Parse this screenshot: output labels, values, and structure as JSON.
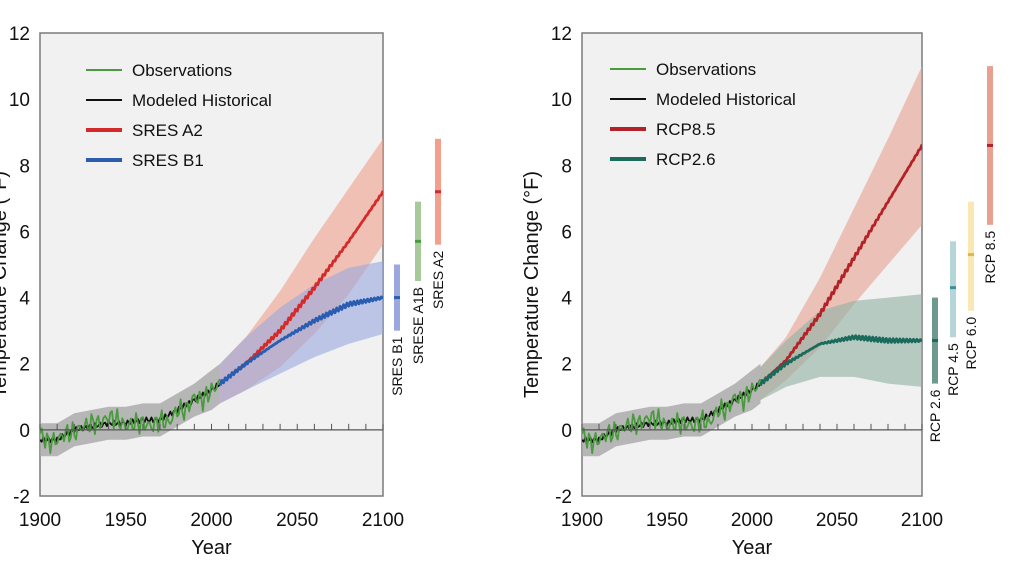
{
  "chart_data": [
    {
      "type": "line",
      "id": "sres",
      "xlabel": "Year",
      "ylabel": "Temperature Change (°F)",
      "xlim": [
        1900,
        2100
      ],
      "ylim": [
        -2,
        12
      ],
      "xticks": [
        "1900",
        "1950",
        "2000",
        "2050",
        "2100"
      ],
      "yticks": [
        "-2",
        "0",
        "2",
        "4",
        "6",
        "8",
        "10",
        "12"
      ],
      "legend_position": "top-left",
      "legend": [
        {
          "label": "Observations",
          "color": "#4a9a3e"
        },
        {
          "label": "Modeled Historical",
          "color": "#111111"
        },
        {
          "label": "SRES A2",
          "color": "#d42a2a"
        },
        {
          "label": "SRES B1",
          "color": "#2a5db0"
        }
      ],
      "series": [
        {
          "name": "Modeled Historical",
          "color": "#111111",
          "x": [
            1900,
            1910,
            1920,
            1930,
            1940,
            1950,
            1960,
            1970,
            1980,
            1990,
            2000,
            2005
          ],
          "values": [
            -0.3,
            -0.3,
            0.0,
            0.1,
            0.2,
            0.2,
            0.3,
            0.3,
            0.6,
            0.9,
            1.2,
            1.4
          ],
          "band_low": [
            -0.8,
            -0.8,
            -0.5,
            -0.4,
            -0.3,
            -0.3,
            -0.2,
            -0.2,
            0.1,
            0.4,
            0.6,
            0.8
          ],
          "band_high": [
            0.2,
            0.2,
            0.5,
            0.6,
            0.7,
            0.7,
            0.8,
            0.8,
            1.1,
            1.4,
            1.8,
            2.0
          ],
          "band_color": "#a8a8a8"
        },
        {
          "name": "Observations",
          "color": "#4a9a3e",
          "x": [
            1900,
            1905,
            1910,
            1915,
            1920,
            1925,
            1930,
            1935,
            1940,
            1945,
            1950,
            1955,
            1960,
            1965,
            1970,
            1975,
            1980,
            1985,
            1990,
            1995,
            2000,
            2005
          ],
          "values": [
            -0.1,
            -0.4,
            -0.3,
            -0.1,
            -0.1,
            0.1,
            0.2,
            0.2,
            0.4,
            0.3,
            0.1,
            0.2,
            0.2,
            0.1,
            0.3,
            0.2,
            0.6,
            0.6,
            1.0,
            0.9,
            1.2,
            1.4
          ]
        },
        {
          "name": "SRES A2",
          "color": "#d42a2a",
          "x": [
            2005,
            2020,
            2040,
            2060,
            2080,
            2100
          ],
          "values": [
            1.4,
            2.0,
            3.0,
            4.3,
            5.7,
            7.2
          ],
          "band_low": [
            0.8,
            1.2,
            1.9,
            2.9,
            4.1,
            5.6
          ],
          "band_high": [
            2.0,
            2.8,
            4.2,
            5.8,
            7.3,
            8.8
          ],
          "band_color": "#f2a08c"
        },
        {
          "name": "SRES B1",
          "color": "#2a5db0",
          "x": [
            2005,
            2020,
            2040,
            2060,
            2080,
            2100
          ],
          "values": [
            1.4,
            2.0,
            2.7,
            3.3,
            3.8,
            4.0
          ],
          "band_low": [
            0.8,
            1.2,
            1.7,
            2.2,
            2.6,
            2.9
          ],
          "band_high": [
            2.0,
            2.8,
            3.7,
            4.4,
            4.9,
            5.1
          ],
          "band_color": "#9aa8df"
        }
      ],
      "range_bars": [
        {
          "label": "SRES B1",
          "low": 3.0,
          "high": 5.0,
          "mean": 4.0,
          "color": "#9aa8df",
          "mean_color": "#2a5db0"
        },
        {
          "label": "SRESE A1B",
          "low": 4.5,
          "high": 6.9,
          "mean": 5.7,
          "color": "#a8c99a",
          "mean_color": "#4a9a3e"
        },
        {
          "label": "SRES A2",
          "low": 5.6,
          "high": 8.8,
          "mean": 7.2,
          "color": "#f2a08c",
          "mean_color": "#d42a2a"
        }
      ]
    },
    {
      "type": "line",
      "id": "rcp",
      "xlabel": "Year",
      "ylabel": "Temperature Change (°F)",
      "xlim": [
        1900,
        2100
      ],
      "ylim": [
        -2,
        12
      ],
      "xticks": [
        "1900",
        "1950",
        "2000",
        "2050",
        "2100"
      ],
      "yticks": [
        "-2",
        "0",
        "2",
        "4",
        "6",
        "8",
        "10",
        "12"
      ],
      "legend_position": "top-left",
      "legend": [
        {
          "label": "Observations",
          "color": "#4a9a3e"
        },
        {
          "label": "Modeled Historical",
          "color": "#111111"
        },
        {
          "label": "RCP8.5",
          "color": "#b22226"
        },
        {
          "label": "RCP2.6",
          "color": "#1b6b5c"
        }
      ],
      "series": [
        {
          "name": "Modeled Historical",
          "color": "#111111",
          "x": [
            1900,
            1910,
            1920,
            1930,
            1940,
            1950,
            1960,
            1970,
            1980,
            1990,
            2000,
            2005
          ],
          "values": [
            -0.3,
            -0.3,
            0.0,
            0.1,
            0.2,
            0.2,
            0.3,
            0.3,
            0.6,
            0.9,
            1.2,
            1.4
          ],
          "band_low": [
            -0.8,
            -0.8,
            -0.5,
            -0.4,
            -0.3,
            -0.3,
            -0.2,
            -0.2,
            0.1,
            0.4,
            0.6,
            0.8
          ],
          "band_high": [
            0.2,
            0.2,
            0.5,
            0.6,
            0.7,
            0.7,
            0.8,
            0.8,
            1.1,
            1.4,
            1.8,
            2.0
          ],
          "band_color": "#a8a8a8"
        },
        {
          "name": "Observations",
          "color": "#4a9a3e",
          "x": [
            1900,
            1905,
            1910,
            1915,
            1920,
            1925,
            1930,
            1935,
            1940,
            1945,
            1950,
            1955,
            1960,
            1965,
            1970,
            1975,
            1980,
            1985,
            1990,
            1995,
            2000,
            2005
          ],
          "values": [
            -0.1,
            -0.4,
            -0.3,
            -0.1,
            -0.1,
            0.1,
            0.2,
            0.2,
            0.4,
            0.3,
            0.1,
            0.2,
            0.2,
            0.1,
            0.3,
            0.2,
            0.6,
            0.6,
            1.0,
            0.9,
            1.2,
            1.4
          ]
        },
        {
          "name": "RCP8.5",
          "color": "#b22226",
          "x": [
            2005,
            2020,
            2040,
            2060,
            2080,
            2100
          ],
          "values": [
            1.4,
            2.1,
            3.5,
            5.2,
            6.9,
            8.6
          ],
          "band_low": [
            0.9,
            1.5,
            2.5,
            3.8,
            5.0,
            6.2
          ],
          "band_high": [
            1.9,
            2.8,
            4.6,
            6.7,
            8.8,
            11.0
          ],
          "band_color": "#e8a090"
        },
        {
          "name": "RCP2.6",
          "color": "#1b6b5c",
          "x": [
            2005,
            2020,
            2040,
            2060,
            2080,
            2100
          ],
          "values": [
            1.4,
            2.0,
            2.6,
            2.8,
            2.7,
            2.7
          ],
          "band_low": [
            0.9,
            1.3,
            1.6,
            1.6,
            1.4,
            1.3
          ],
          "band_high": [
            1.9,
            2.7,
            3.6,
            3.9,
            4.0,
            4.1
          ],
          "band_color": "#8fb0a4"
        }
      ],
      "range_bars": [
        {
          "label": "RCP 2.6",
          "low": 1.4,
          "high": 4.0,
          "mean": 2.7,
          "color": "#6e9a8e",
          "mean_color": "#1b6b5c"
        },
        {
          "label": "RCP 4.5",
          "low": 2.8,
          "high": 5.7,
          "mean": 4.3,
          "color": "#b6d5d8",
          "mean_color": "#3a8fa0"
        },
        {
          "label": "RCP 6.0",
          "low": 3.6,
          "high": 6.9,
          "mean": 5.3,
          "color": "#f9e8b3",
          "mean_color": "#e8b43c"
        },
        {
          "label": "RCP 8.5",
          "low": 6.2,
          "high": 11.0,
          "mean": 8.6,
          "color": "#e8a090",
          "mean_color": "#b22226"
        }
      ]
    }
  ]
}
